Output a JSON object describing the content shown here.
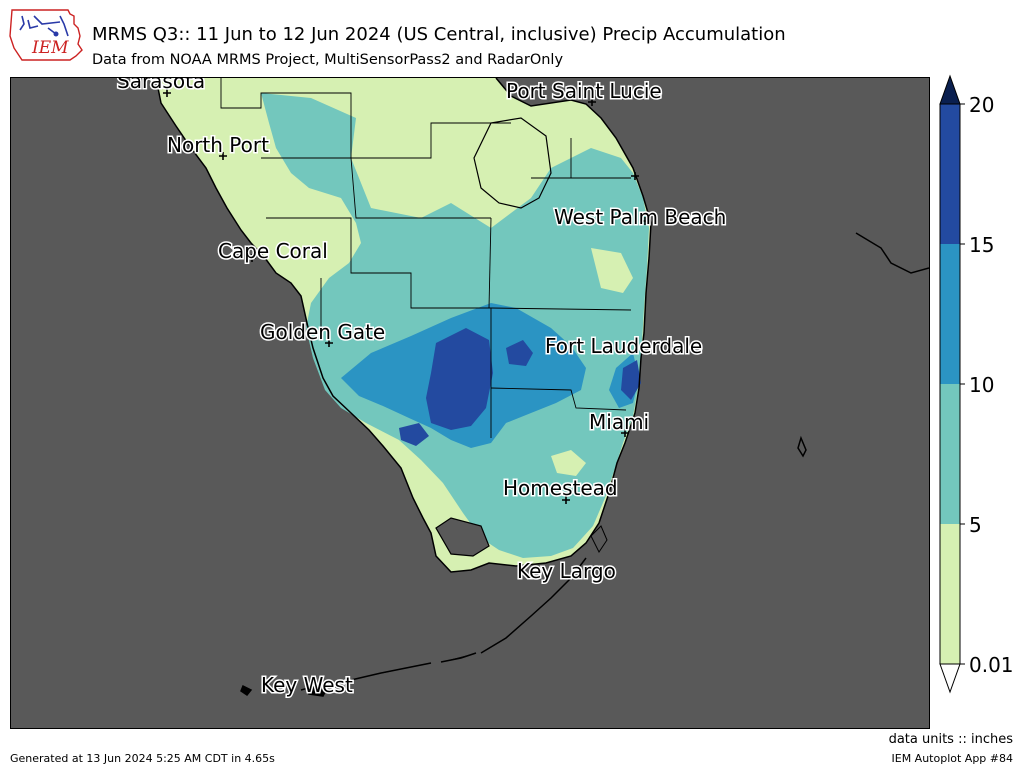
{
  "header": {
    "logo_text": "IEM",
    "title": "MRMS Q3:: 11 Jun to 12 Jun 2024 (US Central, inclusive) Precip Accumulation",
    "subtitle": "Data from NOAA MRMS Project, MultiSensorPass2 and RadarOnly"
  },
  "colors": {
    "ocean": "#595959",
    "legend_extend_max": "#0a1f4f",
    "legend_extend_min": "#ffffff"
  },
  "legend": {
    "bins": [
      {
        "from": "0.01",
        "to": "5",
        "color": "#d6f0b2"
      },
      {
        "from": "5",
        "to": "10",
        "color": "#73c7bd"
      },
      {
        "from": "10",
        "to": "15",
        "color": "#2b94c3"
      },
      {
        "from": "15",
        "to": "20",
        "color": "#234aa0"
      }
    ],
    "ticks": [
      "0.01",
      "5",
      "10",
      "15",
      "20"
    ]
  },
  "map": {
    "cities": [
      {
        "name": "Sarasota"
      },
      {
        "name": "Port Saint Lucie"
      },
      {
        "name": "North Port"
      },
      {
        "name": "West Palm Beach"
      },
      {
        "name": "Cape Coral"
      },
      {
        "name": "Golden Gate"
      },
      {
        "name": "Fort Lauderdale"
      },
      {
        "name": "Miami"
      },
      {
        "name": "Homestead"
      },
      {
        "name": "Key Largo"
      },
      {
        "name": "Key West"
      }
    ]
  },
  "footer": {
    "generated": "Generated at 13 Jun 2024 5:25 AM CDT in 4.65s",
    "units": "data units :: inches",
    "app": "IEM Autoplot App #84"
  }
}
